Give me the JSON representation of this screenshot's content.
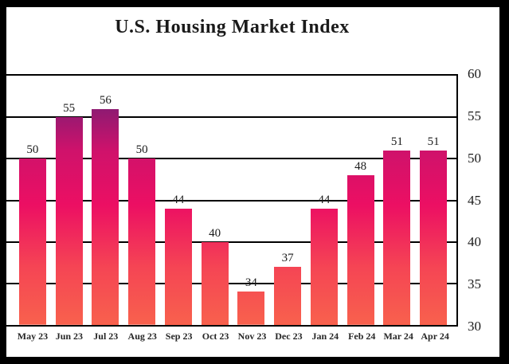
{
  "chart_data": {
    "type": "bar",
    "title": "U.S. Housing Market Index",
    "categories": [
      "May 23",
      "Jun 23",
      "Jul 23",
      "Aug 23",
      "Sep 23",
      "Oct 23",
      "Nov 23",
      "Dec 23",
      "Jan 24",
      "Feb 24",
      "Mar 24",
      "Apr 24"
    ],
    "values": [
      50,
      55,
      56,
      50,
      44,
      40,
      34,
      37,
      44,
      48,
      51,
      51
    ],
    "xlabel": "",
    "ylabel": "",
    "ylim": [
      30,
      60
    ],
    "yticks": [
      60,
      55,
      50,
      45,
      40,
      35,
      30
    ],
    "grid": true,
    "axis_side": "right",
    "data_labels": true,
    "legend": null
  },
  "colors": {
    "frame_border": "#000000",
    "background": "#ffffff",
    "grid_line": "#000000",
    "text": "#1a1a1a",
    "bar_gradient_stops": [
      "#7b1b78",
      "#8d1a72",
      "#cf126b",
      "#ec0f63",
      "#f54554",
      "#f8614d"
    ],
    "bar_gradient_positions": [
      "0%",
      "13%",
      "30%",
      "52%",
      "77%",
      "100%"
    ]
  }
}
